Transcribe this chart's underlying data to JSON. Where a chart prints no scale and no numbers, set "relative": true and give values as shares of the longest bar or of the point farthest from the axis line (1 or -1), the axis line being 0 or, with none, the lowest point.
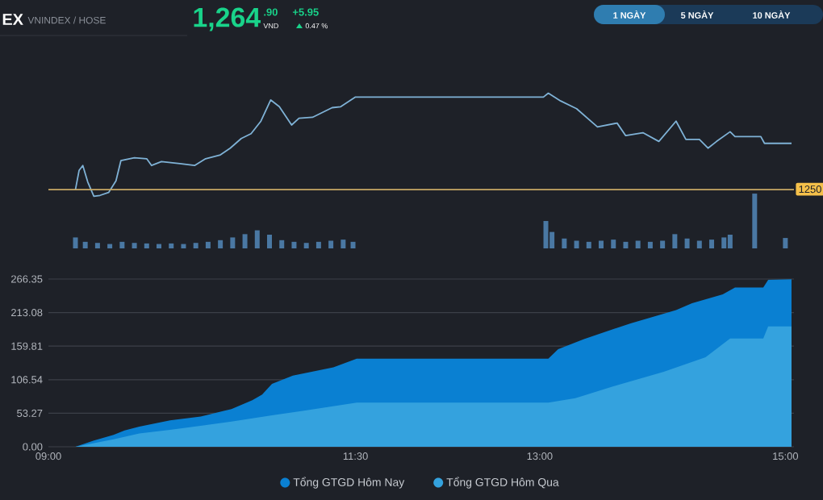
{
  "chart_data": [
    {
      "type": "line",
      "relative": true,
      "xlim": [
        9,
        15.07
      ],
      "ref_lines": [
        {
          "axis": "y",
          "value": 0,
          "color": "#c8a864"
        }
      ],
      "series": [
        {
          "type": "line",
          "color": "#7fb2d6",
          "x": [
            9.22,
            9.25,
            9.28,
            9.32,
            9.37,
            9.42,
            9.49,
            9.55,
            9.59,
            9.7,
            9.8,
            9.84,
            9.92,
            10.07,
            10.19,
            10.28,
            10.4,
            10.48,
            10.57,
            10.65,
            10.73,
            10.81,
            10.88,
            10.98,
            11.04,
            11.15,
            11.31,
            11.38,
            11.5,
            13.03,
            13.07,
            13.17,
            13.3,
            13.47,
            13.63,
            13.7,
            13.84,
            13.97,
            14.11,
            14.19,
            14.3,
            14.37,
            14.44,
            14.55,
            14.59,
            14.8,
            14.83,
            15.05
          ],
          "values": [
            0,
            0.2,
            0.25,
            0.08,
            -0.07,
            -0.06,
            -0.03,
            0.09,
            0.3,
            0.33,
            0.32,
            0.25,
            0.29,
            0.27,
            0.25,
            0.32,
            0.36,
            0.43,
            0.53,
            0.58,
            0.71,
            0.93,
            0.86,
            0.67,
            0.74,
            0.75,
            0.85,
            0.86,
            0.96,
            0.96,
            1,
            0.92,
            0.84,
            0.65,
            0.69,
            0.56,
            0.59,
            0.5,
            0.71,
            0.52,
            0.52,
            0.43,
            0.5,
            0.6,
            0.55,
            0.55,
            0.48,
            0.48
          ]
        }
      ],
      "annotations": [
        "EX",
        "VNINDEX / HOSE",
        "1,264",
        ".90",
        "VND",
        "+5.95",
        "0.47 %",
        "1 NGÀY",
        "5 NGÀY",
        "10 NGÀY",
        "1250"
      ]
    },
    {
      "type": "bar",
      "relative": true,
      "xlim": [
        9,
        15.07
      ],
      "series": [
        {
          "color": "#4a78a3",
          "x": [
            9.22,
            9.3,
            9.4,
            9.5,
            9.6,
            9.7,
            9.8,
            9.9,
            10.0,
            10.1,
            10.2,
            10.3,
            10.4,
            10.5,
            10.6,
            10.7,
            10.8,
            10.9,
            11.0,
            11.1,
            11.2,
            11.3,
            11.4,
            11.48,
            13.05,
            13.1,
            13.2,
            13.3,
            13.4,
            13.5,
            13.6,
            13.7,
            13.8,
            13.9,
            14.0,
            14.1,
            14.2,
            14.3,
            14.4,
            14.5,
            14.55,
            14.75,
            15.0
          ],
          "values": [
            0.2,
            0.12,
            0.1,
            0.08,
            0.12,
            0.1,
            0.09,
            0.08,
            0.09,
            0.08,
            0.1,
            0.12,
            0.15,
            0.2,
            0.26,
            0.33,
            0.25,
            0.15,
            0.12,
            0.1,
            0.12,
            0.14,
            0.16,
            0.12,
            0.5,
            0.3,
            0.18,
            0.14,
            0.12,
            0.14,
            0.16,
            0.12,
            0.14,
            0.12,
            0.14,
            0.26,
            0.18,
            0.14,
            0.16,
            0.2,
            0.25,
            1.0,
            0.19
          ]
        }
      ]
    },
    {
      "type": "area",
      "xlim": [
        9,
        15.07
      ],
      "ylim": [
        0,
        266.35
      ],
      "xticks": [
        {
          "value": 9,
          "label": "09:00"
        },
        {
          "value": 11.5,
          "label": "11:30"
        },
        {
          "value": 13,
          "label": "13:00"
        },
        {
          "value": 15,
          "label": "15:00"
        }
      ],
      "yticks": [
        {
          "value": 0,
          "label": "0.00"
        },
        53.27,
        106.54,
        159.81,
        213.08,
        266.35
      ],
      "grid": "y",
      "legend": "bottom",
      "series": [
        {
          "name": "Tổng GTGD Hôm Nay",
          "color": "#0a80d2",
          "x": [
            9.22,
            9.37,
            9.53,
            9.62,
            9.74,
            9.99,
            10.24,
            10.49,
            10.66,
            10.74,
            10.82,
            10.99,
            11.32,
            11.51,
            13.07,
            13.15,
            13.36,
            13.74,
            14.11,
            14.24,
            14.49,
            14.59,
            14.82,
            14.86,
            15.05
          ],
          "values": [
            0,
            10,
            19,
            26,
            32,
            42,
            48,
            60,
            74,
            83,
            100,
            113,
            126,
            140,
            140,
            155,
            171,
            196,
            217,
            228,
            242,
            253,
            253,
            265,
            266
          ]
        },
        {
          "name": "Tổng GTGD Hôm Qua",
          "color": "#34a2de",
          "x": [
            9.22,
            9.53,
            9.74,
            9.99,
            10.49,
            10.82,
            11.07,
            11.51,
            13.07,
            13.29,
            13.6,
            14.01,
            14.35,
            14.55,
            14.82,
            14.86,
            15.05
          ],
          "values": [
            0,
            12,
            21,
            27,
            40,
            50,
            57,
            70,
            70,
            77,
            96,
            119,
            142,
            172,
            172,
            191,
            191
          ]
        }
      ]
    }
  ]
}
